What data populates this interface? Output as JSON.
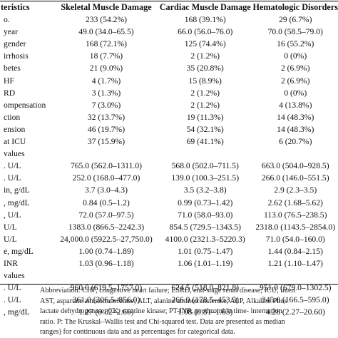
{
  "table": {
    "headers": [
      "teristics",
      "Skeletal Muscle Damage",
      "Cardiac Muscle Damage",
      "Hematologic Disorders"
    ],
    "rows": [
      [
        "o.",
        "233 (54.2%)",
        "168 (39.1%)",
        "29 (6.7%)"
      ],
      [
        "year",
        "49.0 (34.0–65.5)",
        "66.0 (56.0–76.0)",
        "70.0 (58.5–79.0)"
      ],
      [
        "gender",
        "168 (72.1%)",
        "125 (74.4%)",
        "16 (55.2%)"
      ],
      [
        "irrhosis",
        "18 (7.7%)",
        "2 (1.2%)",
        "0 (0%)"
      ],
      [
        "betes",
        "21 (9.0%)",
        "35 (20.8%)",
        "2 (6.9%)"
      ],
      [
        "HF",
        "4 (1.7%)",
        "15 (8.9%)",
        "2 (6.9%)"
      ],
      [
        "RD",
        "3 (1.3%)",
        "2 (1.2%)",
        "0 (0%)"
      ],
      [
        "ompensation",
        "7 (3.0%)",
        "2 (1.2%)",
        "4 (13.8%)"
      ],
      [
        "ction",
        "32 (13.7%)",
        "19 (11.3%)",
        "14 (48.3%)"
      ],
      [
        "ension",
        "46 (19.7%)",
        "54 (32.1%)",
        "14 (48.3%)"
      ],
      [
        "at ICU",
        "37 (15.9%)",
        "69 (41.1%)",
        "6 (20.7%)"
      ],
      [
        "values",
        "",
        "",
        ""
      ],
      [
        ". U/L",
        "765.0 (562.0–1311.0)",
        "568.0 (502.0–711.5)",
        "663.0 (504.0–928.5)"
      ],
      [
        ". U/L",
        "252.0 (168.0–477.0)",
        "139.0 (100.3–251.5)",
        "266.0 (146.0–551.5)"
      ],
      [
        "in, g/dL",
        "3.7 (3.0–4.3)",
        "3.5 (3.2–3.8)",
        "2.9 (2.3–3.5)"
      ],
      [
        ", mg/dL",
        "0.84 (0.5–1.2)",
        "0.99 (0.73–1.42)",
        "2.62 (1.68–5.62)"
      ],
      [
        ", U/L",
        "72.0 (57.0–97.5)",
        "71.0 (58.0–93.0)",
        "113.0 (76.5–238.5)"
      ],
      [
        "U/L",
        "1383.0 (866.5–2242.3)",
        "854.5 (729.5–1343.5)",
        "2318.0 (1143.5–2854.0)"
      ],
      [
        "U/L",
        "24,000.0 (5922.5–27,750.0)",
        "4100.0 (2321.3–5220.3)",
        "71.0 (54.0–160.0)"
      ],
      [
        "e, mg/dL",
        "1.00 (0.74–1.89)",
        "1.01 (0.75–1.47)",
        "1.44 (0.84–2.15)"
      ],
      [
        "INR",
        "1.03 (0.96–1.18)",
        "1.06 (1.01–1.19)",
        "1.21 (1.10–1.47)"
      ],
      [
        "values",
        "",
        "",
        ""
      ],
      [
        ". U/L",
        "960.0 (619.5–1757.0)",
        "624.5 (518.0–821.8)",
        "951.0 (679.0–1302.5)"
      ],
      [
        ". U/L",
        "361.0 (206.5–856.0)",
        "266.0 (178.5–453.5)",
        "345.0 (166.5–595.0)"
      ],
      [
        ", mg/dL",
        "1.27 (0.82–2.60)",
        "1.08 (0.81–1.63)",
        "4.28 (2.27–20.60)"
      ]
    ]
  },
  "footnote": {
    "lines": [
      "Abbreviation: CHF, congestive heart failure; ESRD, end-stage renal disease; ICU, inten",
      "AST, aspartate aminotransferase; ALT, alanine aminotransferase; ALP, Alkaline Phos",
      "lactate dehydrogenase; CK, creatine kinase; PT-INR, prothrombin time- internation",
      "ratio. P: The Kruskal–Wallis test and Chi-squared test. Data are presented as median",
      "ranges) for continuous data and as percentages for categorical data."
    ]
  }
}
